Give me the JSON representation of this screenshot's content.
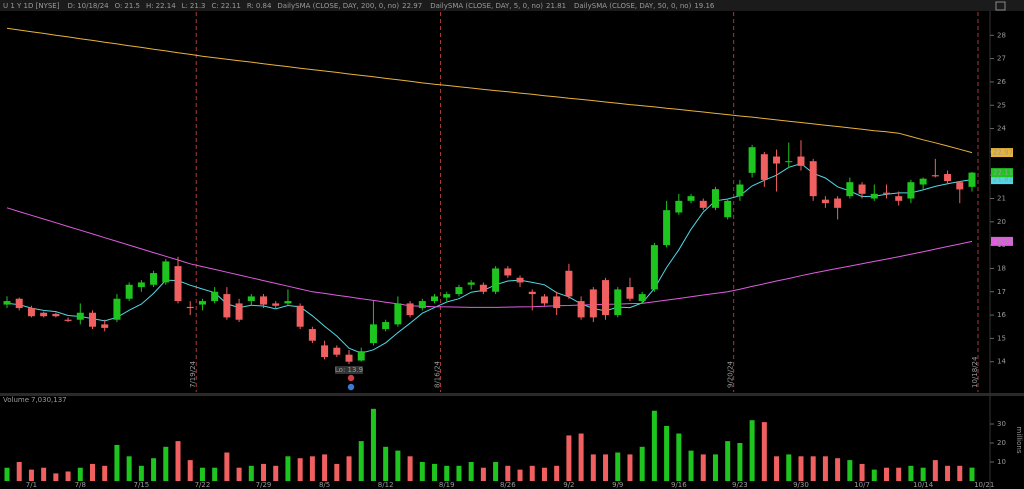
{
  "header": {
    "symbol": "U 1 Y 1D [NYSE]",
    "date_label": "D:",
    "date": "10/18/24",
    "open_label": "O:",
    "high_label": "H:",
    "low_label": "L:",
    "close_label": "C:",
    "range_label": "R:",
    "range": 0.84
  },
  "chart_data": [
    {
      "type": "candlestick",
      "up_color": "#1fc51f",
      "down_color": "#f06060",
      "ylim": [
        12.7,
        29.0
      ],
      "yticks": [
        14,
        15,
        16,
        17,
        18,
        19,
        20,
        21,
        22,
        23,
        24,
        25,
        26,
        27,
        28
      ],
      "open": [
        16.45,
        16.7,
        16.3,
        16.1,
        16.05,
        15.8,
        15.8,
        16.1,
        15.6,
        15.8,
        16.7,
        17.2,
        17.3,
        17.4,
        18.1,
        16.35,
        16.45,
        16.6,
        16.9,
        16.5,
        16.6,
        16.8,
        16.5,
        16.5,
        16.4,
        15.4,
        14.7,
        14.6,
        14.3,
        14.05,
        14.8,
        15.4,
        15.6,
        16.5,
        16.3,
        16.6,
        16.75,
        16.9,
        17.3,
        17.3,
        17.0,
        18.0,
        17.6,
        17.0,
        16.8,
        16.8,
        17.9,
        16.6,
        17.1,
        17.5,
        16.0,
        17.2,
        16.6,
        17.1,
        19.0,
        20.4,
        20.9,
        20.9,
        20.6,
        20.2,
        21.1,
        22.1,
        22.9,
        22.8,
        22.6,
        22.8,
        22.6,
        20.95,
        21.0,
        21.1,
        21.6,
        21.0,
        21.25,
        21.1,
        21.0,
        21.6,
        22.0,
        22.05,
        21.7,
        21.5
      ],
      "high": [
        16.8,
        16.75,
        16.4,
        16.15,
        16.1,
        15.9,
        16.5,
        16.2,
        15.8,
        16.9,
        17.4,
        17.5,
        17.9,
        18.4,
        18.5,
        16.6,
        16.7,
        17.2,
        17.2,
        16.7,
        16.9,
        16.9,
        16.6,
        17.1,
        16.5,
        15.5,
        14.9,
        14.7,
        14.5,
        14.6,
        16.6,
        15.8,
        16.8,
        16.6,
        16.7,
        16.9,
        17.0,
        17.3,
        17.5,
        17.4,
        18.1,
        18.1,
        17.7,
        17.1,
        16.9,
        17.0,
        18.2,
        16.8,
        17.2,
        17.6,
        17.2,
        17.6,
        17.0,
        19.1,
        20.9,
        21.2,
        21.2,
        21.0,
        21.5,
        21.0,
        21.8,
        23.3,
        23.0,
        23.1,
        23.4,
        23.5,
        22.7,
        21.1,
        21.1,
        21.9,
        21.7,
        21.6,
        21.6,
        21.3,
        21.8,
        21.9,
        22.7,
        22.2,
        21.75,
        22.14
      ],
      "low": [
        16.3,
        16.2,
        15.9,
        15.9,
        15.9,
        15.7,
        15.6,
        15.4,
        15.3,
        15.7,
        16.6,
        17.0,
        17.2,
        17.3,
        16.5,
        16.0,
        16.2,
        16.5,
        15.8,
        15.7,
        16.4,
        16.3,
        16.3,
        16.4,
        15.4,
        14.8,
        14.1,
        14.2,
        13.9,
        14.0,
        14.7,
        15.3,
        15.5,
        15.9,
        16.2,
        16.5,
        16.6,
        16.8,
        17.1,
        16.9,
        16.9,
        17.6,
        17.2,
        16.2,
        16.4,
        16.0,
        16.7,
        15.8,
        15.7,
        15.8,
        15.9,
        16.6,
        16.5,
        17.0,
        18.9,
        20.3,
        20.8,
        20.5,
        20.5,
        20.1,
        20.9,
        21.9,
        21.5,
        21.3,
        22.3,
        22.2,
        20.9,
        20.6,
        20.1,
        21.0,
        21.0,
        20.9,
        21.0,
        20.7,
        20.8,
        21.4,
        21.9,
        21.6,
        20.8,
        21.3
      ],
      "close": [
        16.6,
        16.3,
        15.95,
        15.95,
        15.95,
        15.75,
        16.1,
        15.5,
        15.45,
        16.7,
        17.3,
        17.4,
        17.8,
        18.3,
        16.6,
        16.3,
        16.6,
        17.0,
        15.9,
        15.8,
        16.8,
        16.45,
        16.4,
        16.6,
        15.5,
        14.9,
        14.2,
        14.3,
        14.0,
        14.45,
        15.6,
        15.7,
        16.5,
        16.0,
        16.6,
        16.8,
        16.9,
        17.2,
        17.4,
        17.0,
        18.0,
        17.7,
        17.4,
        16.9,
        16.5,
        16.3,
        16.8,
        15.9,
        15.9,
        16.0,
        17.1,
        16.7,
        16.9,
        19.0,
        20.5,
        20.9,
        21.1,
        20.6,
        21.4,
        20.9,
        21.6,
        23.2,
        21.8,
        22.5,
        22.6,
        22.4,
        21.1,
        20.8,
        20.6,
        21.7,
        21.2,
        21.2,
        21.2,
        20.9,
        21.7,
        21.85,
        21.95,
        21.75,
        21.39,
        22.11
      ],
      "series": [
        {
          "name": "DailySMA (CLOSE, DAY, 200, 0, no)",
          "color": "#e8b33a",
          "values": [
            28.3,
            28.23,
            28.15,
            28.08,
            28.0,
            27.93,
            27.85,
            27.78,
            27.7,
            27.63,
            27.55,
            27.48,
            27.4,
            27.33,
            27.25,
            27.18,
            27.1,
            27.04,
            26.97,
            26.91,
            26.85,
            26.78,
            26.72,
            26.66,
            26.59,
            26.53,
            26.47,
            26.41,
            26.34,
            26.28,
            26.22,
            26.15,
            26.09,
            26.03,
            25.96,
            25.9,
            25.85,
            25.79,
            25.74,
            25.68,
            25.63,
            25.58,
            25.52,
            25.47,
            25.41,
            25.36,
            25.3,
            25.25,
            25.2,
            25.14,
            25.09,
            25.03,
            24.98,
            24.93,
            24.87,
            24.82,
            24.76,
            24.71,
            24.65,
            24.6,
            24.54,
            24.49,
            24.43,
            24.37,
            24.31,
            24.26,
            24.2,
            24.14,
            24.09,
            24.03,
            23.97,
            23.91,
            23.86,
            23.8,
            23.66,
            23.52,
            23.39,
            23.25,
            23.11,
            22.97
          ]
        },
        {
          "name": "DailySMA (CLOSE, DAY, 5, 0, no)",
          "color": "#4fd8e6",
          "values": [
            16.5,
            16.45,
            16.3,
            16.2,
            16.15,
            15.98,
            15.94,
            15.85,
            15.75,
            15.9,
            16.21,
            16.47,
            16.93,
            17.5,
            17.48,
            17.28,
            17.12,
            16.96,
            16.48,
            16.32,
            16.42,
            16.39,
            16.27,
            16.41,
            16.35,
            15.97,
            15.52,
            15.1,
            14.58,
            14.37,
            14.51,
            14.81,
            15.25,
            15.65,
            16.08,
            16.32,
            16.56,
            16.7,
            16.98,
            17.06,
            17.3,
            17.46,
            17.5,
            17.4,
            17.3,
            16.96,
            16.78,
            16.48,
            16.28,
            16.18,
            16.34,
            16.32,
            16.52,
            17.14,
            18.04,
            18.8,
            19.68,
            20.42,
            20.9,
            20.98,
            21.12,
            21.54,
            21.78,
            22.0,
            22.34,
            22.5,
            22.08,
            21.88,
            21.5,
            21.32,
            21.08,
            21.1,
            21.18,
            21.24,
            21.24,
            21.37,
            21.52,
            21.63,
            21.73,
            21.81
          ]
        },
        {
          "name": "DailySMA (CLOSE, DAY, 50, 0, no)",
          "color": "#e05ce0",
          "values": [
            20.6,
            20.44,
            20.28,
            20.12,
            19.96,
            19.8,
            19.64,
            19.48,
            19.32,
            19.16,
            19.0,
            18.84,
            18.68,
            18.52,
            18.36,
            18.2,
            18.08,
            17.96,
            17.84,
            17.72,
            17.6,
            17.48,
            17.36,
            17.24,
            17.12,
            17.0,
            16.93,
            16.85,
            16.78,
            16.7,
            16.63,
            16.55,
            16.48,
            16.4,
            16.38,
            16.36,
            16.35,
            16.34,
            16.33,
            16.33,
            16.33,
            16.34,
            16.35,
            16.36,
            16.38,
            16.4,
            16.41,
            16.43,
            16.44,
            16.46,
            16.47,
            16.49,
            16.5,
            16.57,
            16.64,
            16.71,
            16.79,
            16.86,
            16.93,
            17.0,
            17.11,
            17.23,
            17.34,
            17.46,
            17.57,
            17.69,
            17.8,
            17.9,
            18.0,
            18.1,
            18.2,
            18.3,
            18.4,
            18.5,
            18.61,
            18.72,
            18.83,
            18.94,
            19.05,
            19.16
          ]
        }
      ],
      "events": [
        "7/19/24",
        "8/16/24",
        "9/20/24",
        "10/18/24"
      ],
      "annotation": "Lo: 13.9"
    },
    {
      "type": "bar",
      "title": "Volume",
      "last_label": "7,030,137",
      "ylabel": "millions",
      "ylim": [
        0,
        43.7
      ],
      "yticks": [
        10,
        20,
        30
      ],
      "x_labels": [
        "7/1",
        "7/8",
        "7/15",
        "7/22",
        "7/29",
        "8/5",
        "8/12",
        "8/19",
        "8/26",
        "9/2",
        "9/9",
        "9/16",
        "9/23",
        "9/30",
        "10/7",
        "10/14",
        "10/21"
      ],
      "values": [
        7,
        10,
        6,
        7,
        4,
        5,
        7,
        9,
        8,
        19,
        13,
        8,
        12,
        18,
        21,
        11,
        7,
        7,
        15,
        7,
        8,
        9,
        8,
        13,
        12,
        13,
        14,
        9,
        13,
        21,
        38,
        18,
        16,
        13,
        10,
        9,
        8,
        8,
        10,
        7,
        10,
        8,
        6,
        8,
        7,
        8,
        24,
        25,
        14,
        14,
        15,
        14,
        18,
        37,
        29,
        25,
        16,
        14,
        14,
        21,
        20,
        32,
        31,
        13,
        14,
        13,
        13,
        13,
        12,
        11,
        9,
        6,
        7,
        7,
        8,
        7,
        11,
        8,
        8,
        7.03
      ]
    }
  ]
}
